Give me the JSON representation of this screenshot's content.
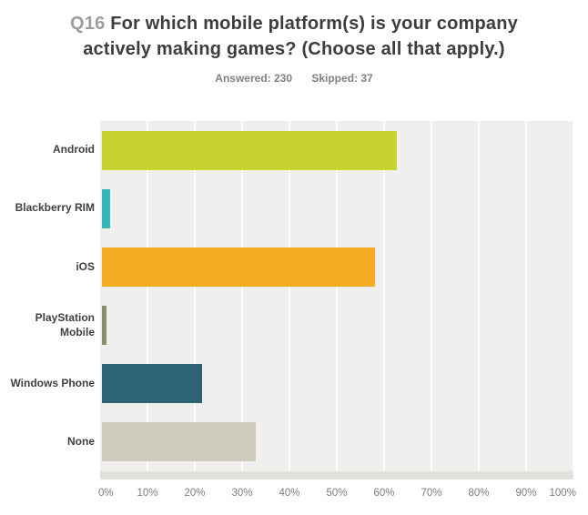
{
  "header": {
    "question_number": "Q16",
    "question_text": "For which mobile platform(s) is your company actively making games? (Choose all that apply.)",
    "answered_label": "Answered: 230",
    "skipped_label": "Skipped: 37"
  },
  "chart_data": {
    "type": "bar",
    "orientation": "horizontal",
    "title": "Q16 For which mobile platform(s) is your company actively making games? (Choose all that apply.)",
    "answered": 230,
    "skipped": 37,
    "categories": [
      "Android",
      "Blackberry RIM",
      "iOS",
      "PlayStation Mobile",
      "Windows Phone",
      "None"
    ],
    "values": [
      62.61,
      1.74,
      57.83,
      0.87,
      21.3,
      32.61
    ],
    "unit": "%",
    "bar_colors": [
      "#c9d32f",
      "#35b6ba",
      "#f5ab21",
      "#8b8b71",
      "#2e6375",
      "#cfccbb"
    ],
    "xlim": [
      0,
      100
    ],
    "x_tick_step": 10,
    "x_tick_labels": [
      "0%",
      "10%",
      "20%",
      "30%",
      "40%",
      "50%",
      "60%",
      "70%",
      "80%",
      "90%",
      "100%"
    ],
    "grid": true,
    "plot_background": "#efefee",
    "legend": "none"
  }
}
